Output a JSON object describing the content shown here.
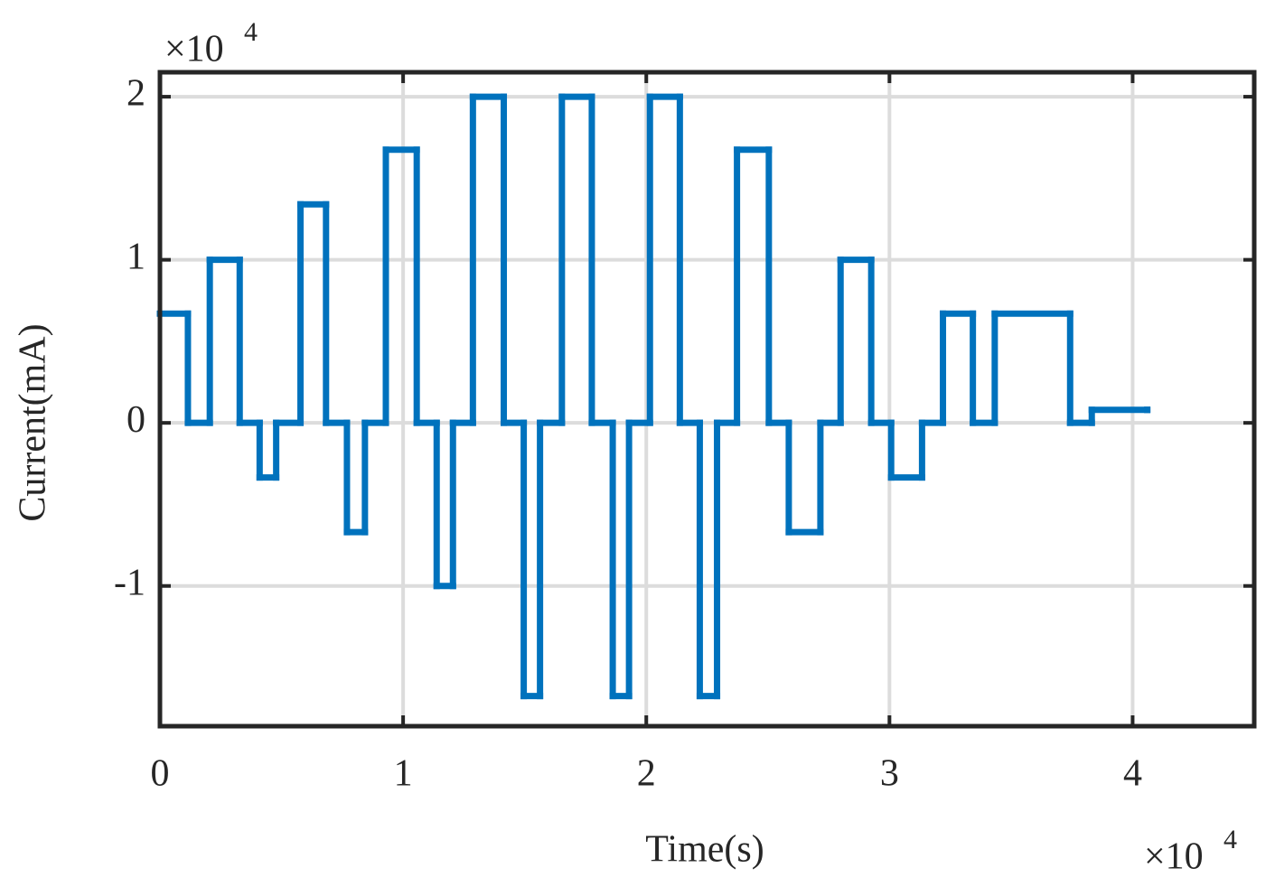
{
  "chart_data": {
    "type": "line",
    "step": "post",
    "x_label": "Time(s)",
    "y_label": "Current(mA)",
    "x_multiplier": {
      "base": "×10",
      "power": "4"
    },
    "y_multiplier": {
      "base": "×10",
      "power": "4"
    },
    "x": [
      0,
      1150,
      2050,
      3280,
      4100,
      4780,
      5780,
      6830,
      7690,
      8430,
      9290,
      10560,
      11380,
      12050,
      12870,
      14140,
      14960,
      15630,
      16530,
      17760,
      18620,
      19290,
      20150,
      21380,
      22200,
      22910,
      23730,
      25040,
      25860,
      27160,
      27990,
      29250,
      30070,
      31340,
      32200,
      33430,
      34330,
      37430,
      38320,
      40600
    ],
    "values": [
      6700,
      0,
      10000,
      0,
      -3350,
      0,
      13400,
      0,
      -6700,
      0,
      16750,
      0,
      -10000,
      0,
      20000,
      0,
      -16750,
      0,
      20000,
      0,
      -16750,
      0,
      20000,
      0,
      -16750,
      0,
      16750,
      0,
      -6700,
      0,
      10000,
      0,
      -3350,
      0,
      6700,
      0,
      6700,
      0,
      800,
      800
    ],
    "color": "#0072bd",
    "xlim": [
      0,
      45000
    ],
    "xticks": [
      {
        "value": 0,
        "label": "0"
      },
      {
        "value": 10000,
        "label": "1"
      },
      {
        "value": 20000,
        "label": "2"
      },
      {
        "value": 30000,
        "label": "3"
      },
      {
        "value": 40000,
        "label": "4"
      }
    ],
    "ylim": [
      -18600,
      21500
    ],
    "yticks": [
      {
        "value": -10000,
        "label": "-1"
      },
      {
        "value": 0,
        "label": "0"
      },
      {
        "value": 10000,
        "label": "1"
      },
      {
        "value": 20000,
        "label": "2"
      }
    ],
    "grid": true
  }
}
